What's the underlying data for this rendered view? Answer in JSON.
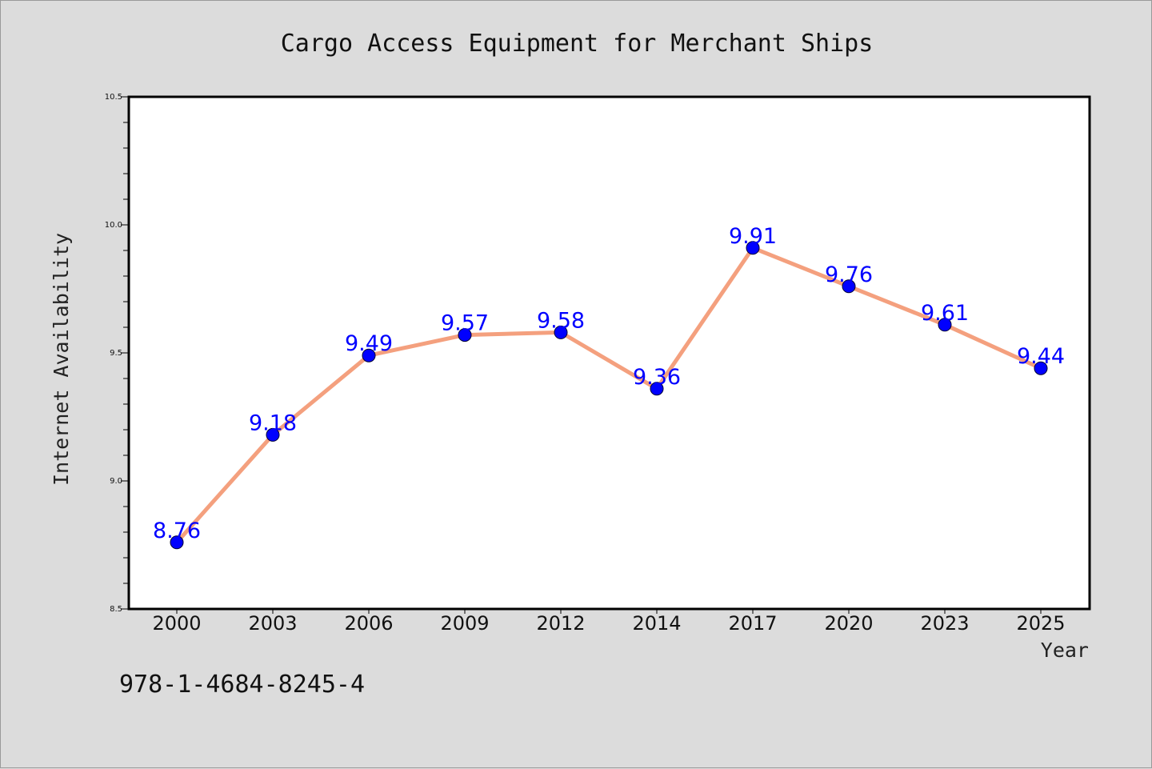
{
  "chart_data": {
    "type": "line",
    "title": "Cargo Access Equipment for Merchant Ships",
    "xlabel": "Year",
    "ylabel": "Internet Availability",
    "categories": [
      "2000",
      "2003",
      "2006",
      "2009",
      "2012",
      "2014",
      "2017",
      "2020",
      "2023",
      "2025"
    ],
    "series": [
      {
        "values": [
          8.76,
          9.18,
          9.49,
          9.57,
          9.58,
          9.36,
          9.91,
          9.76,
          9.61,
          9.44
        ],
        "data_labels": [
          "8.76",
          "9.18",
          "9.49",
          "9.57",
          "9.58",
          "9.36",
          "9.91",
          "9.76",
          "9.61",
          "9.44"
        ],
        "line_color": "#f4a07e",
        "marker_color": "#0000ff"
      }
    ],
    "ylim": [
      8.5,
      10.5
    ],
    "yticks": [
      "8.5",
      "9.0",
      "9.5",
      "10.0",
      "10.5"
    ],
    "ytick_values": [
      8.5,
      9.0,
      9.5,
      10.0,
      10.5
    ],
    "grid": false,
    "legend": "none"
  },
  "footer_code": "978-1-4684-8245-4",
  "colors": {
    "background": "#dcdcdc",
    "plot_area": "#ffffff",
    "line": "#f4a07e",
    "marker": "#0000ff",
    "data_label": "#0000ff"
  }
}
